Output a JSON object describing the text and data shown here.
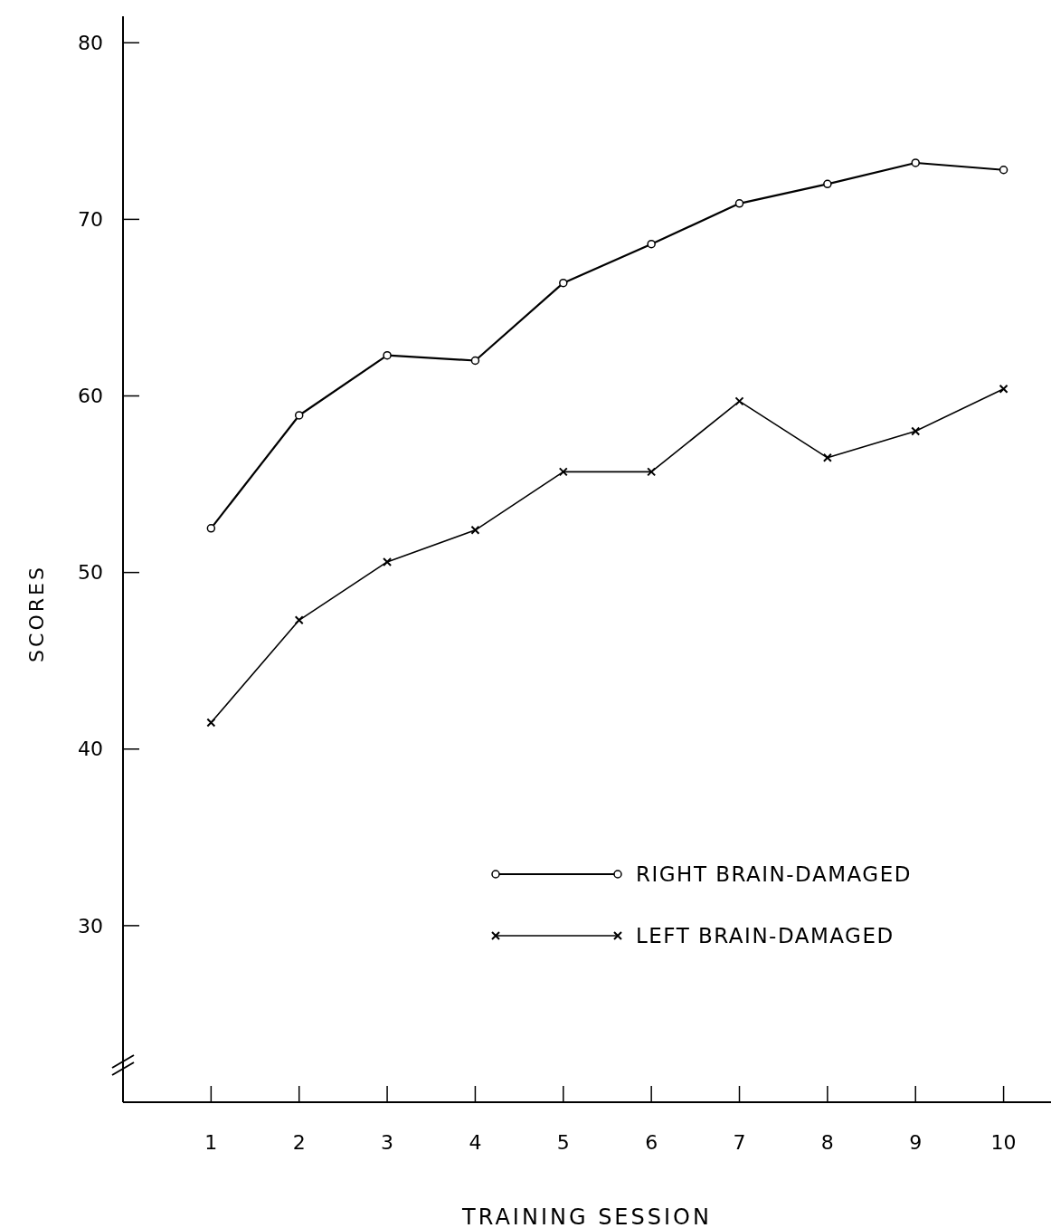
{
  "chart_data": {
    "type": "line",
    "xlabel": "TRAINING SESSION",
    "ylabel": "SCORES",
    "x": [
      1,
      2,
      3,
      4,
      5,
      6,
      7,
      8,
      9,
      10
    ],
    "xlim": [
      0,
      10.6
    ],
    "xticks": [
      1,
      2,
      3,
      4,
      5,
      6,
      7,
      8,
      9,
      10
    ],
    "ylim": [
      20,
      81.5
    ],
    "yticks": [
      30,
      40,
      50,
      60,
      70,
      80
    ],
    "grid": false,
    "legend": "bottom right",
    "series": [
      {
        "name": "RIGHT BRAIN-DAMAGED",
        "color": "#000000",
        "marker": "circle",
        "values": [
          52.5,
          58.9,
          62.3,
          62.0,
          66.4,
          68.6,
          70.9,
          72.0,
          73.2,
          72.8
        ]
      },
      {
        "name": "LEFT BRAIN-DAMAGED",
        "color": "#000000",
        "marker": "cross",
        "values": [
          41.5,
          47.3,
          50.6,
          52.4,
          55.7,
          55.7,
          59.7,
          56.5,
          58.0,
          60.4
        ]
      }
    ]
  }
}
